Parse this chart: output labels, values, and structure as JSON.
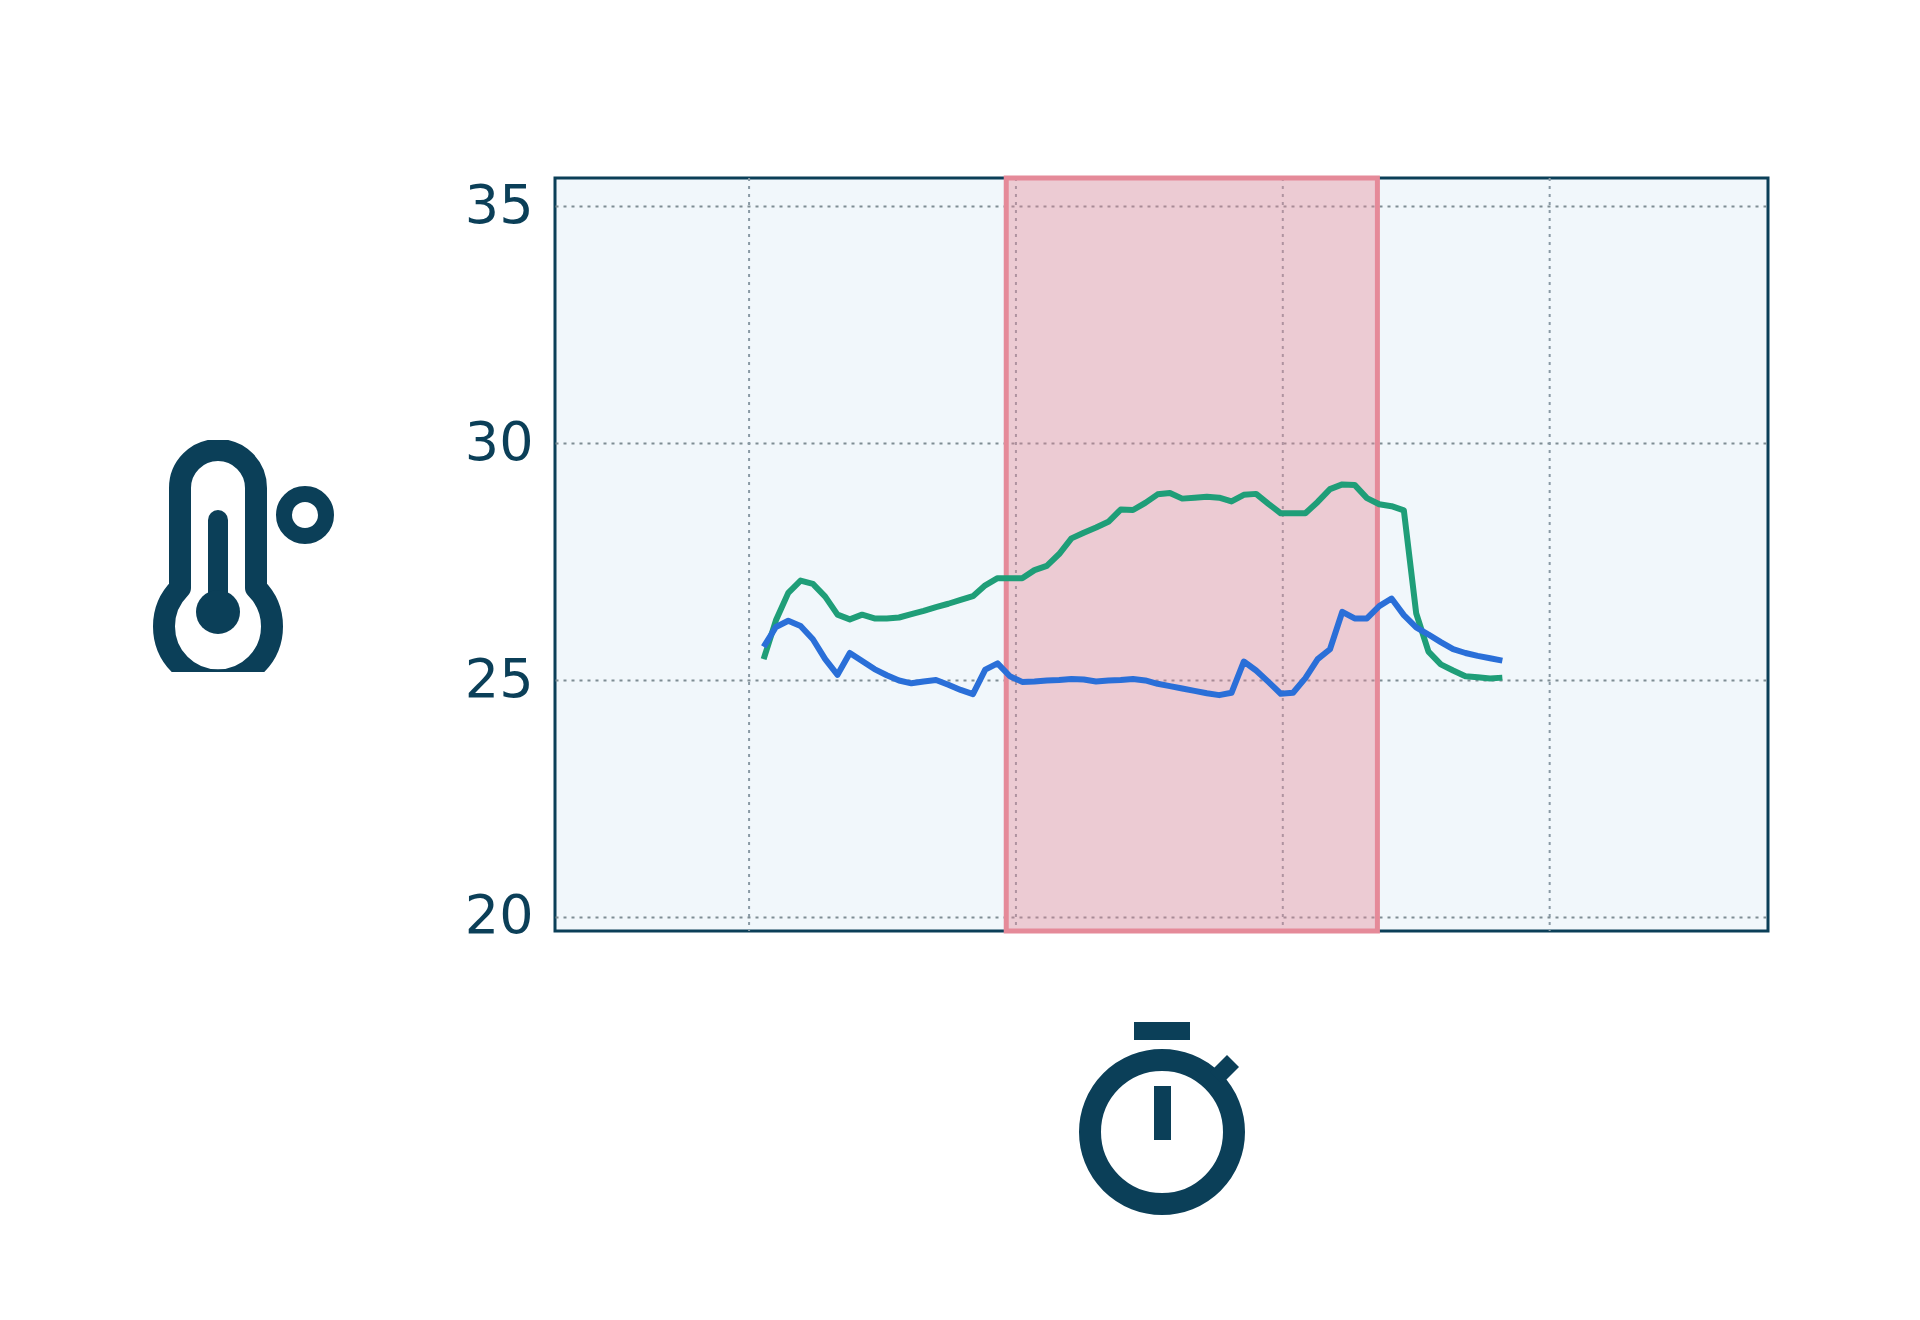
{
  "chart_data": {
    "type": "line",
    "categories": [
      null,
      null,
      null,
      null,
      null,
      null,
      null,
      null,
      null,
      null,
      null,
      null,
      null,
      null,
      null,
      null,
      null,
      null,
      null,
      null,
      null,
      null,
      null,
      null,
      null,
      null,
      null,
      null,
      null,
      null,
      null,
      null,
      null,
      null,
      null,
      null,
      null,
      null,
      null,
      null,
      null,
      null,
      null,
      null,
      null,
      null,
      null,
      null,
      null,
      null,
      null,
      null,
      null,
      null,
      null,
      null,
      null,
      null,
      null,
      null,
      null
    ],
    "ylim": [
      19.7,
      35.6
    ],
    "yticks": [
      20,
      25,
      30,
      35
    ],
    "grid": true,
    "tick_labels": "y",
    "series": [
      {
        "color": "#1f9e78",
        "values": [
          25.44,
          26.26,
          26.84,
          27.1,
          27.03,
          26.76,
          26.38,
          26.28,
          26.38,
          26.3,
          26.3,
          26.32,
          26.39,
          26.46,
          26.54,
          26.61,
          26.69,
          26.77,
          27.0,
          27.15,
          27.15,
          27.15,
          27.32,
          27.41,
          27.66,
          27.99,
          28.11,
          28.22,
          28.34,
          28.6,
          28.59,
          28.74,
          28.92,
          28.95,
          28.83,
          28.85,
          28.87,
          28.85,
          28.77,
          28.91,
          28.93,
          28.72,
          28.52,
          28.52,
          28.52,
          28.76,
          29.03,
          29.13,
          29.12,
          28.84,
          28.71,
          28.67,
          28.58,
          26.41,
          25.6,
          25.33,
          25.2,
          25.08,
          25.06,
          25.03,
          25.05
        ]
      },
      {
        "color": "#2a6fd8",
        "values": [
          25.7,
          26.12,
          26.25,
          26.14,
          25.86,
          25.44,
          25.11,
          25.57,
          25.4,
          25.23,
          25.1,
          24.99,
          24.93,
          24.97,
          25.0,
          24.9,
          24.79,
          24.7,
          25.22,
          25.35,
          25.08,
          24.96,
          24.97,
          24.99,
          25.0,
          25.02,
          25.01,
          24.97,
          24.99,
          25.0,
          25.02,
          24.99,
          24.92,
          24.87,
          24.82,
          24.77,
          24.72,
          24.68,
          24.73,
          25.39,
          25.2,
          24.96,
          24.71,
          24.73,
          25.04,
          25.44,
          25.65,
          26.44,
          26.3,
          26.3,
          26.56,
          26.72,
          26.37,
          26.11,
          25.96,
          25.8,
          25.65,
          25.57,
          25.51,
          25.46,
          25.41
        ]
      }
    ]
  }
}
